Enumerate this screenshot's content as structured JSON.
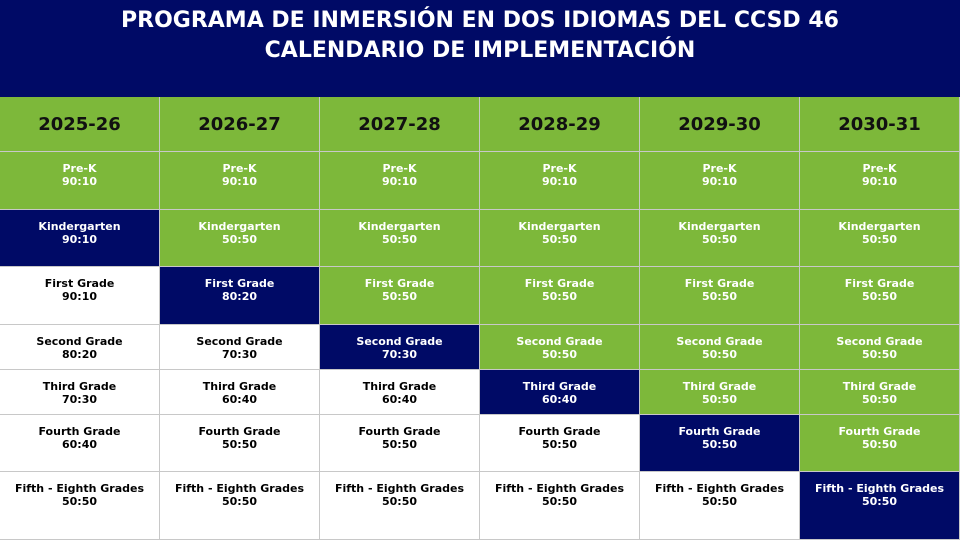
{
  "header": {
    "title": [
      "PROGRAMA DE INMERSIÓN EN DOS IDIOMAS DEL CCSD 46",
      "CALENDARIO DE IMPLEMENTACIÓN"
    ]
  },
  "table": {
    "columns": [
      "2025-26",
      "2026-27",
      "2027-28",
      "2028-29",
      "2029-30",
      "2030-31"
    ],
    "rows": [
      [
        {
          "grade": "Pre-K",
          "ratio": "90:10"
        },
        {
          "grade": "Pre-K",
          "ratio": "90:10"
        },
        {
          "grade": "Pre-K",
          "ratio": "90:10"
        },
        {
          "grade": "Pre-K",
          "ratio": "90:10"
        },
        {
          "grade": "Pre-K",
          "ratio": "90:10"
        },
        {
          "grade": "Pre-K",
          "ratio": "90:10"
        }
      ],
      [
        {
          "grade": "Kindergarten",
          "ratio": "90:10"
        },
        {
          "grade": "Kindergarten",
          "ratio": "50:50"
        },
        {
          "grade": "Kindergarten",
          "ratio": "50:50"
        },
        {
          "grade": "Kindergarten",
          "ratio": "50:50"
        },
        {
          "grade": "Kindergarten",
          "ratio": "50:50"
        },
        {
          "grade": "Kindergarten",
          "ratio": "50:50"
        }
      ],
      [
        {
          "grade": "First Grade",
          "ratio": "90:10"
        },
        {
          "grade": "First Grade",
          "ratio": "80:20"
        },
        {
          "grade": "First Grade",
          "ratio": "50:50"
        },
        {
          "grade": "First Grade",
          "ratio": "50:50"
        },
        {
          "grade": "First Grade",
          "ratio": "50:50"
        },
        {
          "grade": "First Grade",
          "ratio": "50:50"
        }
      ],
      [
        {
          "grade": "Second Grade",
          "ratio": "80:20"
        },
        {
          "grade": "Second Grade",
          "ratio": "70:30"
        },
        {
          "grade": "Second Grade",
          "ratio": "70:30"
        },
        {
          "grade": "Second Grade",
          "ratio": "50:50"
        },
        {
          "grade": "Second Grade",
          "ratio": "50:50"
        },
        {
          "grade": "Second Grade",
          "ratio": "50:50"
        }
      ],
      [
        {
          "grade": "Third Grade",
          "ratio": "70:30"
        },
        {
          "grade": "Third Grade",
          "ratio": "60:40"
        },
        {
          "grade": "Third Grade",
          "ratio": "60:40"
        },
        {
          "grade": "Third Grade",
          "ratio": "60:40"
        },
        {
          "grade": "Third Grade",
          "ratio": "50:50"
        },
        {
          "grade": "Third Grade",
          "ratio": "50:50"
        }
      ],
      [
        {
          "grade": "Fourth Grade",
          "ratio": "60:40"
        },
        {
          "grade": "Fourth Grade",
          "ratio": "50:50"
        },
        {
          "grade": "Fourth Grade",
          "ratio": "50:50"
        },
        {
          "grade": "Fourth Grade",
          "ratio": "50:50"
        },
        {
          "grade": "Fourth Grade",
          "ratio": "50:50"
        },
        {
          "grade": "Fourth Grade",
          "ratio": "50:50"
        }
      ],
      [
        {
          "grade": "Fifth - Eighth Grades",
          "ratio": "50:50"
        },
        {
          "grade": "Fifth - Eighth Grades",
          "ratio": "50:50"
        },
        {
          "grade": "Fifth - Eighth Grades",
          "ratio": "50:50"
        },
        {
          "grade": "Fifth - Eighth Grades",
          "ratio": "50:50"
        },
        {
          "grade": "Fifth - Eighth Grades",
          "ratio": "50:50"
        },
        {
          "grade": "Fifth - Eighth Grades",
          "ratio": "50:50"
        }
      ]
    ]
  }
}
